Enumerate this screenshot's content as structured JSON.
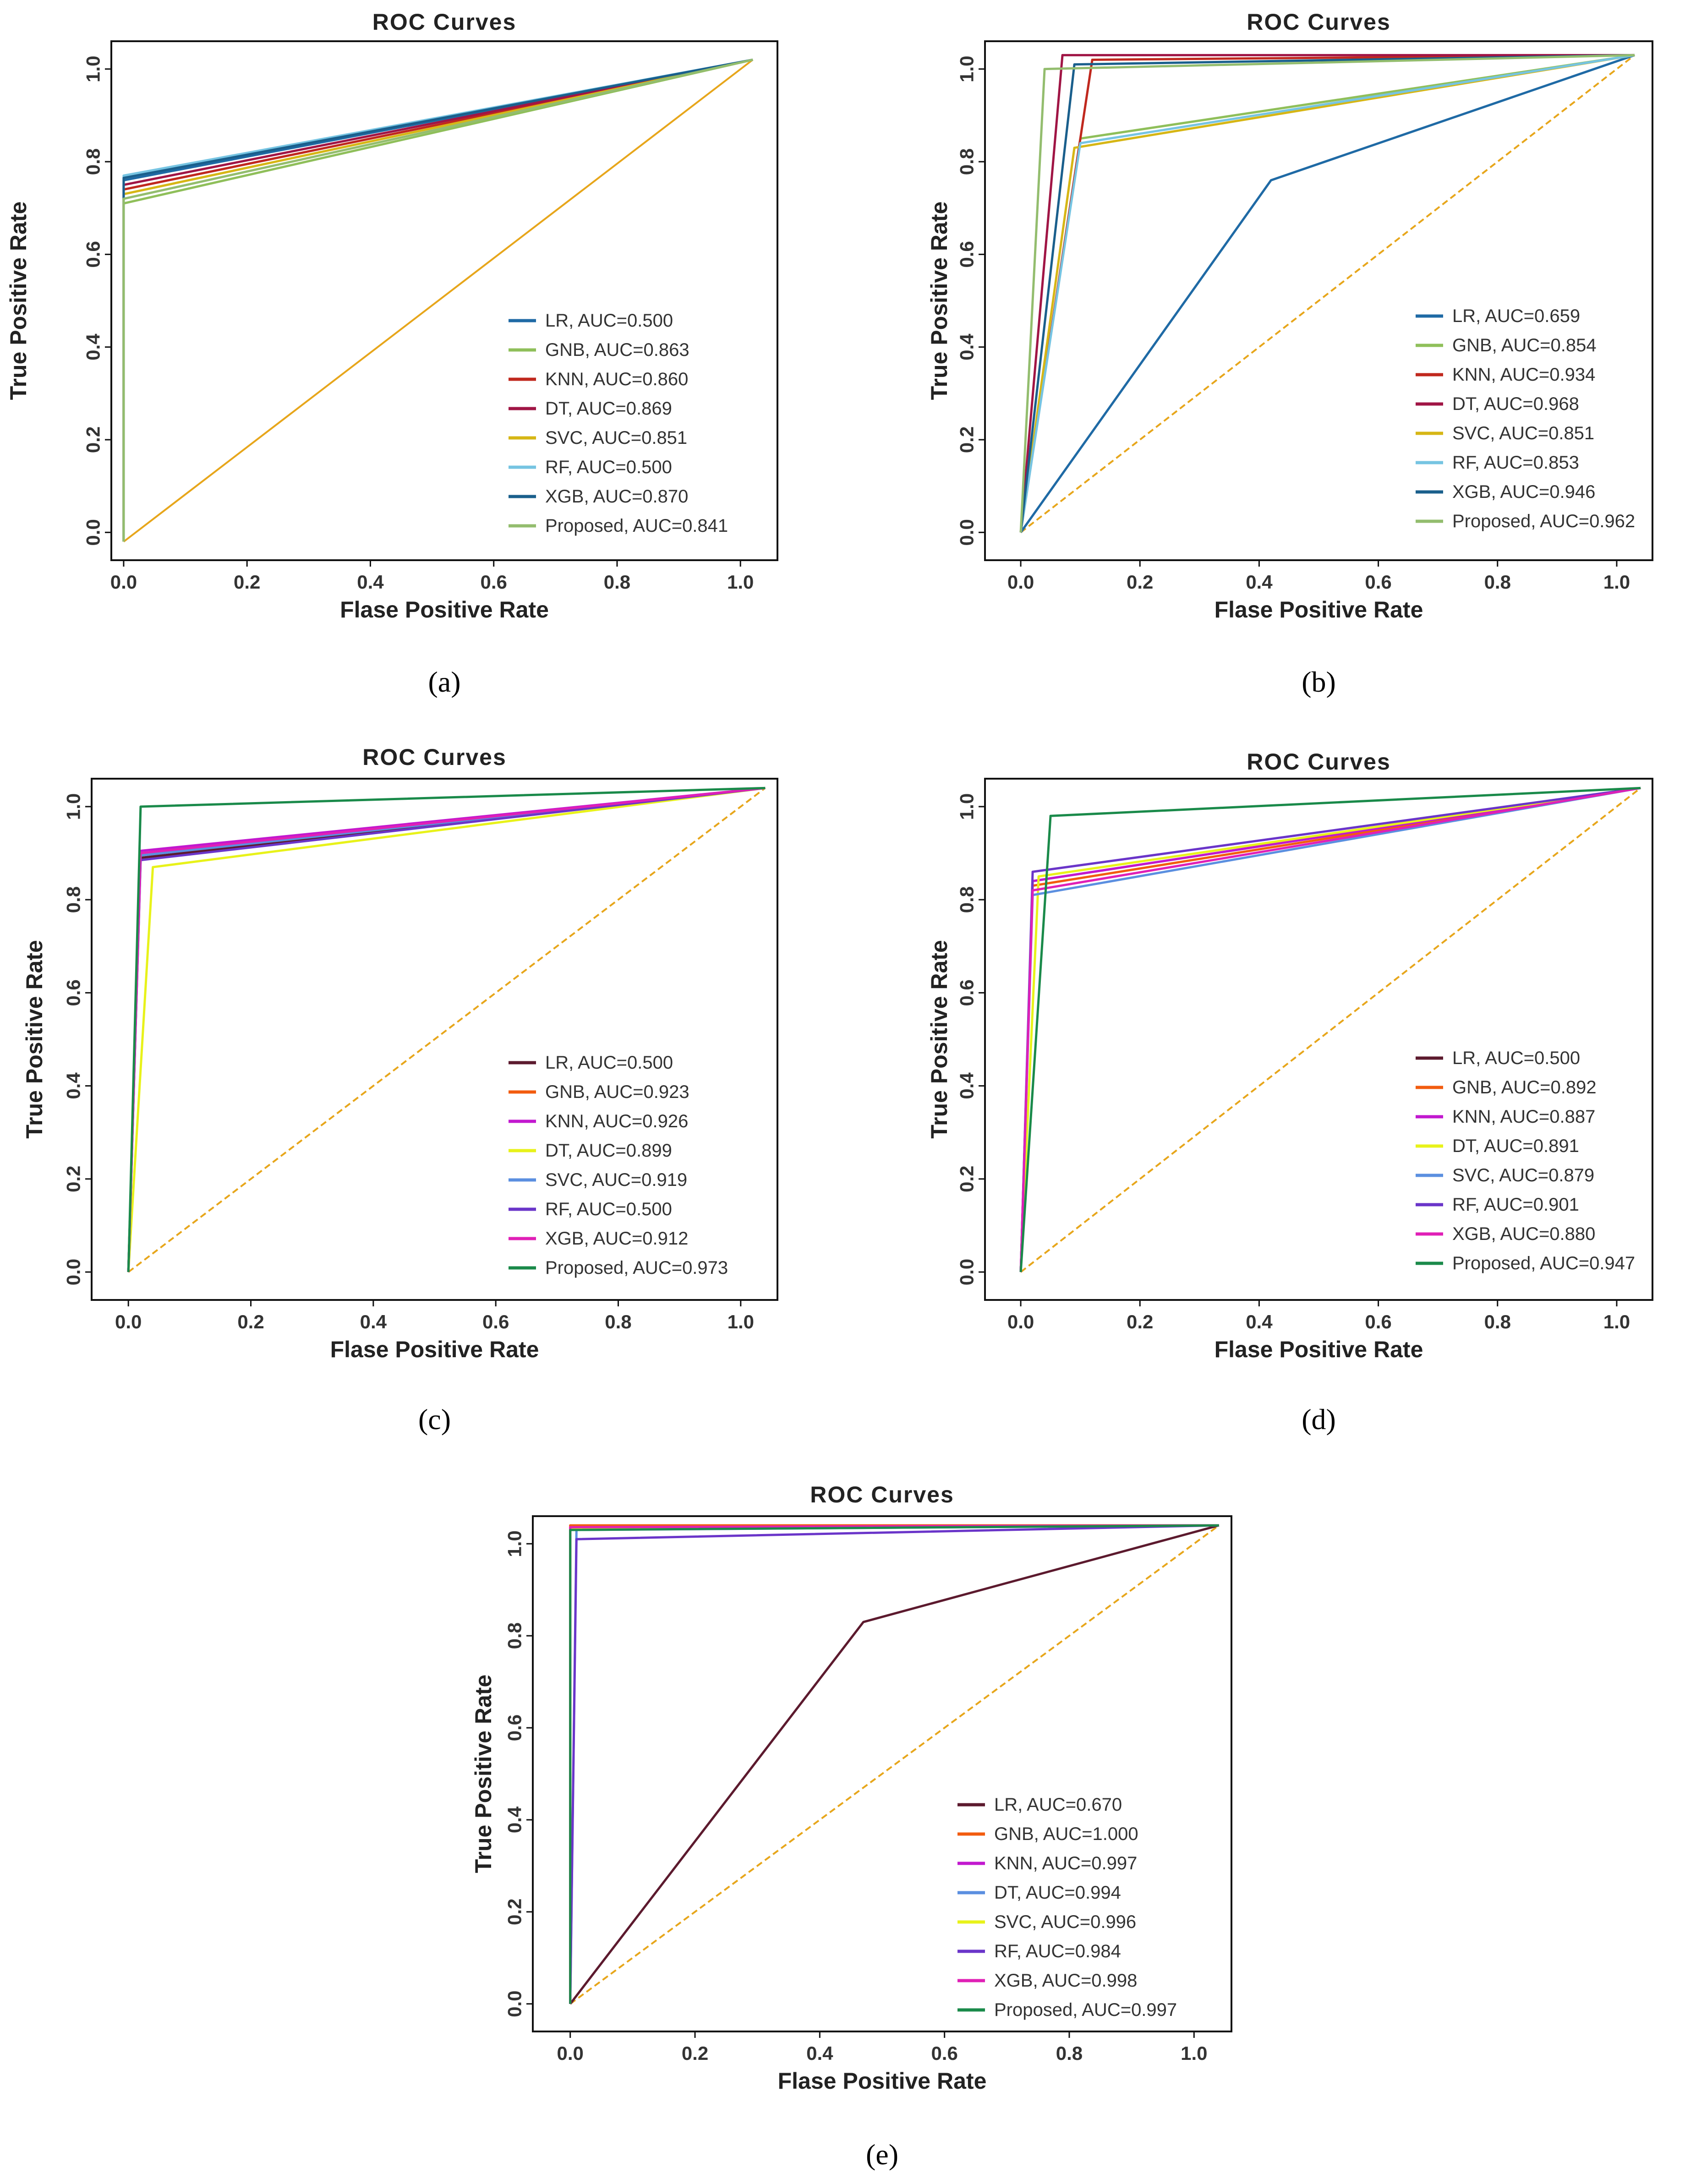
{
  "chart_data": [
    {
      "type": "line",
      "panel": "a",
      "caption": "(a)",
      "title": "ROC Curves",
      "xlabel": "Flase Positive Rate",
      "ylabel": "True Positive Rate",
      "xlim": [
        -0.02,
        1.06
      ],
      "ylim": [
        -0.06,
        1.06
      ],
      "xticks": [
        "0.0",
        "0.2",
        "0.4",
        "0.6",
        "0.8",
        "1.0"
      ],
      "yticks": [
        "0.0",
        "0.2",
        "0.4",
        "0.6",
        "0.8",
        "1.0"
      ],
      "legend_position": "bottom-right",
      "diagonal": {
        "color": "#e7a61b",
        "dashed": false
      },
      "series": [
        {
          "name": "LR",
          "label": "LR, AUC=0.500",
          "color": "#1f6aa5",
          "x": [
            0,
            0,
            1.02
          ],
          "y": [
            -0.02,
            0.76,
            1.02
          ]
        },
        {
          "name": "GNB",
          "label": "GNB, AUC=0.863",
          "color": "#8fbf5a",
          "x": [
            0,
            0,
            1.02
          ],
          "y": [
            -0.02,
            0.71,
            1.02
          ]
        },
        {
          "name": "KNN",
          "label": "KNN, AUC=0.860",
          "color": "#c0281e",
          "x": [
            0,
            0,
            1.02
          ],
          "y": [
            -0.02,
            0.74,
            1.02
          ]
        },
        {
          "name": "DT",
          "label": "DT, AUC=0.869",
          "color": "#a01545",
          "x": [
            0,
            0,
            1.02
          ],
          "y": [
            -0.02,
            0.75,
            1.02
          ]
        },
        {
          "name": "SVC",
          "label": "SVC, AUC=0.851",
          "color": "#d6b615",
          "x": [
            0,
            0,
            1.02
          ],
          "y": [
            -0.02,
            0.73,
            1.02
          ]
        },
        {
          "name": "RF",
          "label": "RF, AUC=0.500",
          "color": "#76c4e2",
          "x": [
            0,
            0,
            1.02
          ],
          "y": [
            -0.02,
            0.77,
            1.02
          ]
        },
        {
          "name": "XGB",
          "label": "XGB, AUC=0.870",
          "color": "#1a5f8c",
          "x": [
            0,
            0,
            1.02
          ],
          "y": [
            -0.02,
            0.765,
            1.02
          ]
        },
        {
          "name": "Proposed",
          "label": "Proposed, AUC=0.841",
          "color": "#93bd6e",
          "x": [
            0,
            0,
            1.02
          ],
          "y": [
            -0.02,
            0.72,
            1.02
          ]
        }
      ]
    },
    {
      "type": "line",
      "panel": "b",
      "caption": "(b)",
      "title": "ROC Curves",
      "xlabel": "Flase Positive Rate",
      "ylabel": "True Positive Rate",
      "xlim": [
        -0.06,
        1.06
      ],
      "ylim": [
        -0.06,
        1.06
      ],
      "xticks": [
        "0.0",
        "0.2",
        "0.4",
        "0.6",
        "0.8",
        "1.0"
      ],
      "yticks": [
        "0.0",
        "0.2",
        "0.4",
        "0.6",
        "0.8",
        "1.0"
      ],
      "legend_position": "bottom-right",
      "diagonal": {
        "color": "#e7a61b",
        "dashed": true
      },
      "series": [
        {
          "name": "LR",
          "label": "LR, AUC=0.659",
          "color": "#1f6aa5",
          "x": [
            0,
            0.42,
            1.03
          ],
          "y": [
            0,
            0.76,
            1.03
          ]
        },
        {
          "name": "GNB",
          "label": "GNB, AUC=0.854",
          "color": "#8fbf5a",
          "x": [
            0,
            0.1,
            1.03
          ],
          "y": [
            0,
            0.85,
            1.03
          ]
        },
        {
          "name": "KNN",
          "label": "KNN, AUC=0.934",
          "color": "#c0281e",
          "x": [
            0,
            0.12,
            1.03
          ],
          "y": [
            0,
            1.02,
            1.03
          ]
        },
        {
          "name": "DT",
          "label": "DT, AUC=0.968",
          "color": "#a01545",
          "x": [
            0,
            0.07,
            1.03
          ],
          "y": [
            0,
            1.03,
            1.03
          ]
        },
        {
          "name": "SVC",
          "label": "SVC, AUC=0.851",
          "color": "#d6b615",
          "x": [
            0,
            0.09,
            1.03
          ],
          "y": [
            0,
            0.83,
            1.03
          ]
        },
        {
          "name": "RF",
          "label": "RF, AUC=0.853",
          "color": "#76c4e2",
          "x": [
            0,
            0.1,
            1.03
          ],
          "y": [
            0,
            0.84,
            1.03
          ]
        },
        {
          "name": "XGB",
          "label": "XGB, AUC=0.946",
          "color": "#1a5f8c",
          "x": [
            0,
            0.09,
            1.03
          ],
          "y": [
            0,
            1.01,
            1.03
          ]
        },
        {
          "name": "Proposed",
          "label": "Proposed, AUC=0.962",
          "color": "#93bd6e",
          "x": [
            0,
            0.04,
            1.03
          ],
          "y": [
            0,
            1.0,
            1.03
          ]
        }
      ]
    },
    {
      "type": "line",
      "panel": "c",
      "caption": "(c)",
      "title": "ROC Curves",
      "xlabel": "Flase Positive Rate",
      "ylabel": "True Positive Rate",
      "xlim": [
        -0.06,
        1.06
      ],
      "ylim": [
        -0.06,
        1.06
      ],
      "xticks": [
        "0.0",
        "0.2",
        "0.4",
        "0.6",
        "0.8",
        "1.0"
      ],
      "yticks": [
        "0.0",
        "0.2",
        "0.4",
        "0.6",
        "0.8",
        "1.0"
      ],
      "legend_position": "bottom-right",
      "diagonal": {
        "color": "#e7a61b",
        "dashed": true
      },
      "series": [
        {
          "name": "LR",
          "label": "LR, AUC=0.500",
          "color": "#5c1a2e",
          "x": [
            0,
            0.02,
            1.04
          ],
          "y": [
            0,
            0.89,
            1.04
          ]
        },
        {
          "name": "GNB",
          "label": "GNB, AUC=0.923",
          "color": "#f25c0f",
          "x": [
            0,
            0.02,
            1.04
          ],
          "y": [
            0,
            0.9,
            1.04
          ]
        },
        {
          "name": "KNN",
          "label": "KNN, AUC=0.926",
          "color": "#c218cf",
          "x": [
            0,
            0.02,
            1.04
          ],
          "y": [
            0,
            0.905,
            1.04
          ]
        },
        {
          "name": "DT",
          "label": "DT, AUC=0.899",
          "color": "#e8f21a",
          "x": [
            0,
            0.04,
            1.04
          ],
          "y": [
            0,
            0.87,
            1.04
          ]
        },
        {
          "name": "SVC",
          "label": "SVC, AUC=0.919",
          "color": "#5b8fe0",
          "x": [
            0,
            0.02,
            1.04
          ],
          "y": [
            0,
            0.895,
            1.04
          ]
        },
        {
          "name": "RF",
          "label": "RF, AUC=0.500",
          "color": "#6a35c9",
          "x": [
            0,
            0.02,
            1.04
          ],
          "y": [
            0,
            0.885,
            1.04
          ]
        },
        {
          "name": "XGB",
          "label": "XGB, AUC=0.912",
          "color": "#e020b6",
          "x": [
            0,
            0.02,
            1.04
          ],
          "y": [
            0,
            0.9,
            1.04
          ]
        },
        {
          "name": "Proposed",
          "label": "Proposed, AUC=0.973",
          "color": "#1a8a4a",
          "x": [
            0,
            0.02,
            1.04
          ],
          "y": [
            0,
            1.0,
            1.04
          ]
        }
      ]
    },
    {
      "type": "line",
      "panel": "d",
      "caption": "(d)",
      "title": "ROC Curves",
      "xlabel": "Flase Positive Rate",
      "ylabel": "True Positive Rate",
      "xlim": [
        -0.06,
        1.06
      ],
      "ylim": [
        -0.06,
        1.06
      ],
      "xticks": [
        "0.0",
        "0.2",
        "0.4",
        "0.6",
        "0.8",
        "1.0"
      ],
      "yticks": [
        "0.0",
        "0.2",
        "0.4",
        "0.6",
        "0.8",
        "1.0"
      ],
      "legend_position": "bottom-right",
      "diagonal": {
        "color": "#e7a61b",
        "dashed": true
      },
      "series": [
        {
          "name": "LR",
          "label": "LR, AUC=0.500",
          "color": "#5c1a2e",
          "x": [
            0,
            0.02,
            1.04
          ],
          "y": [
            0,
            0.84,
            1.04
          ]
        },
        {
          "name": "GNB",
          "label": "GNB, AUC=0.892",
          "color": "#f25c0f",
          "x": [
            0,
            0.02,
            1.04
          ],
          "y": [
            0,
            0.83,
            1.04
          ]
        },
        {
          "name": "KNN",
          "label": "KNN, AUC=0.887",
          "color": "#c218cf",
          "x": [
            0,
            0.02,
            1.04
          ],
          "y": [
            0,
            0.84,
            1.04
          ]
        },
        {
          "name": "DT",
          "label": "DT, AUC=0.891",
          "color": "#e8f21a",
          "x": [
            0,
            0.03,
            1.04
          ],
          "y": [
            0,
            0.85,
            1.04
          ]
        },
        {
          "name": "SVC",
          "label": "SVC, AUC=0.879",
          "color": "#5b8fe0",
          "x": [
            0,
            0.02,
            1.04
          ],
          "y": [
            0,
            0.81,
            1.04
          ]
        },
        {
          "name": "RF",
          "label": "RF, AUC=0.901",
          "color": "#6a35c9",
          "x": [
            0,
            0.02,
            1.04
          ],
          "y": [
            0,
            0.86,
            1.04
          ]
        },
        {
          "name": "XGB",
          "label": "XGB, AUC=0.880",
          "color": "#e020b6",
          "x": [
            0,
            0.02,
            1.04
          ],
          "y": [
            0,
            0.82,
            1.04
          ]
        },
        {
          "name": "Proposed",
          "label": "Proposed, AUC=0.947",
          "color": "#1a8a4a",
          "x": [
            0,
            0.05,
            1.04
          ],
          "y": [
            0,
            0.98,
            1.04
          ]
        }
      ]
    },
    {
      "type": "line",
      "panel": "e",
      "caption": "(e)",
      "title": "ROC Curves",
      "xlabel": "Flase Positive Rate",
      "ylabel": "True Positive Rate",
      "xlim": [
        -0.06,
        1.06
      ],
      "ylim": [
        -0.06,
        1.06
      ],
      "xticks": [
        "0.0",
        "0.2",
        "0.4",
        "0.6",
        "0.8",
        "1.0"
      ],
      "yticks": [
        "0.0",
        "0.2",
        "0.4",
        "0.6",
        "0.8",
        "1.0"
      ],
      "legend_position": "bottom-right",
      "diagonal": {
        "color": "#e7a61b",
        "dashed": true
      },
      "series": [
        {
          "name": "LR",
          "label": "LR, AUC=0.670",
          "color": "#5c1a2e",
          "x": [
            0,
            0.47,
            1.04
          ],
          "y": [
            0,
            0.83,
            1.04
          ]
        },
        {
          "name": "GNB",
          "label": "GNB, AUC=1.000",
          "color": "#f25c0f",
          "x": [
            0,
            0.0,
            1.04
          ],
          "y": [
            0,
            1.04,
            1.04
          ]
        },
        {
          "name": "KNN",
          "label": "KNN, AUC=0.997",
          "color": "#c218cf",
          "x": [
            0,
            0.0,
            1.04
          ],
          "y": [
            0,
            1.035,
            1.04
          ]
        },
        {
          "name": "DT",
          "label": "DT, AUC=0.994",
          "color": "#5b8fe0",
          "x": [
            0,
            0.01,
            1.04
          ],
          "y": [
            0,
            1.03,
            1.04
          ]
        },
        {
          "name": "SVC",
          "label": "SVC, AUC=0.996",
          "color": "#e8f21a",
          "x": [
            0,
            0.0,
            1.04
          ],
          "y": [
            0,
            1.033,
            1.04
          ]
        },
        {
          "name": "RF",
          "label": "RF, AUC=0.984",
          "color": "#6a35c9",
          "x": [
            0,
            0.01,
            1.04
          ],
          "y": [
            0,
            1.01,
            1.04
          ]
        },
        {
          "name": "XGB",
          "label": "XGB, AUC=0.998",
          "color": "#e020b6",
          "x": [
            0,
            0.0,
            1.04
          ],
          "y": [
            0,
            1.036,
            1.04
          ]
        },
        {
          "name": "Proposed",
          "label": "Proposed, AUC=0.997",
          "color": "#1a8a4a",
          "x": [
            0,
            0.0,
            1.04
          ],
          "y": [
            0,
            1.03,
            1.04
          ]
        }
      ]
    }
  ]
}
